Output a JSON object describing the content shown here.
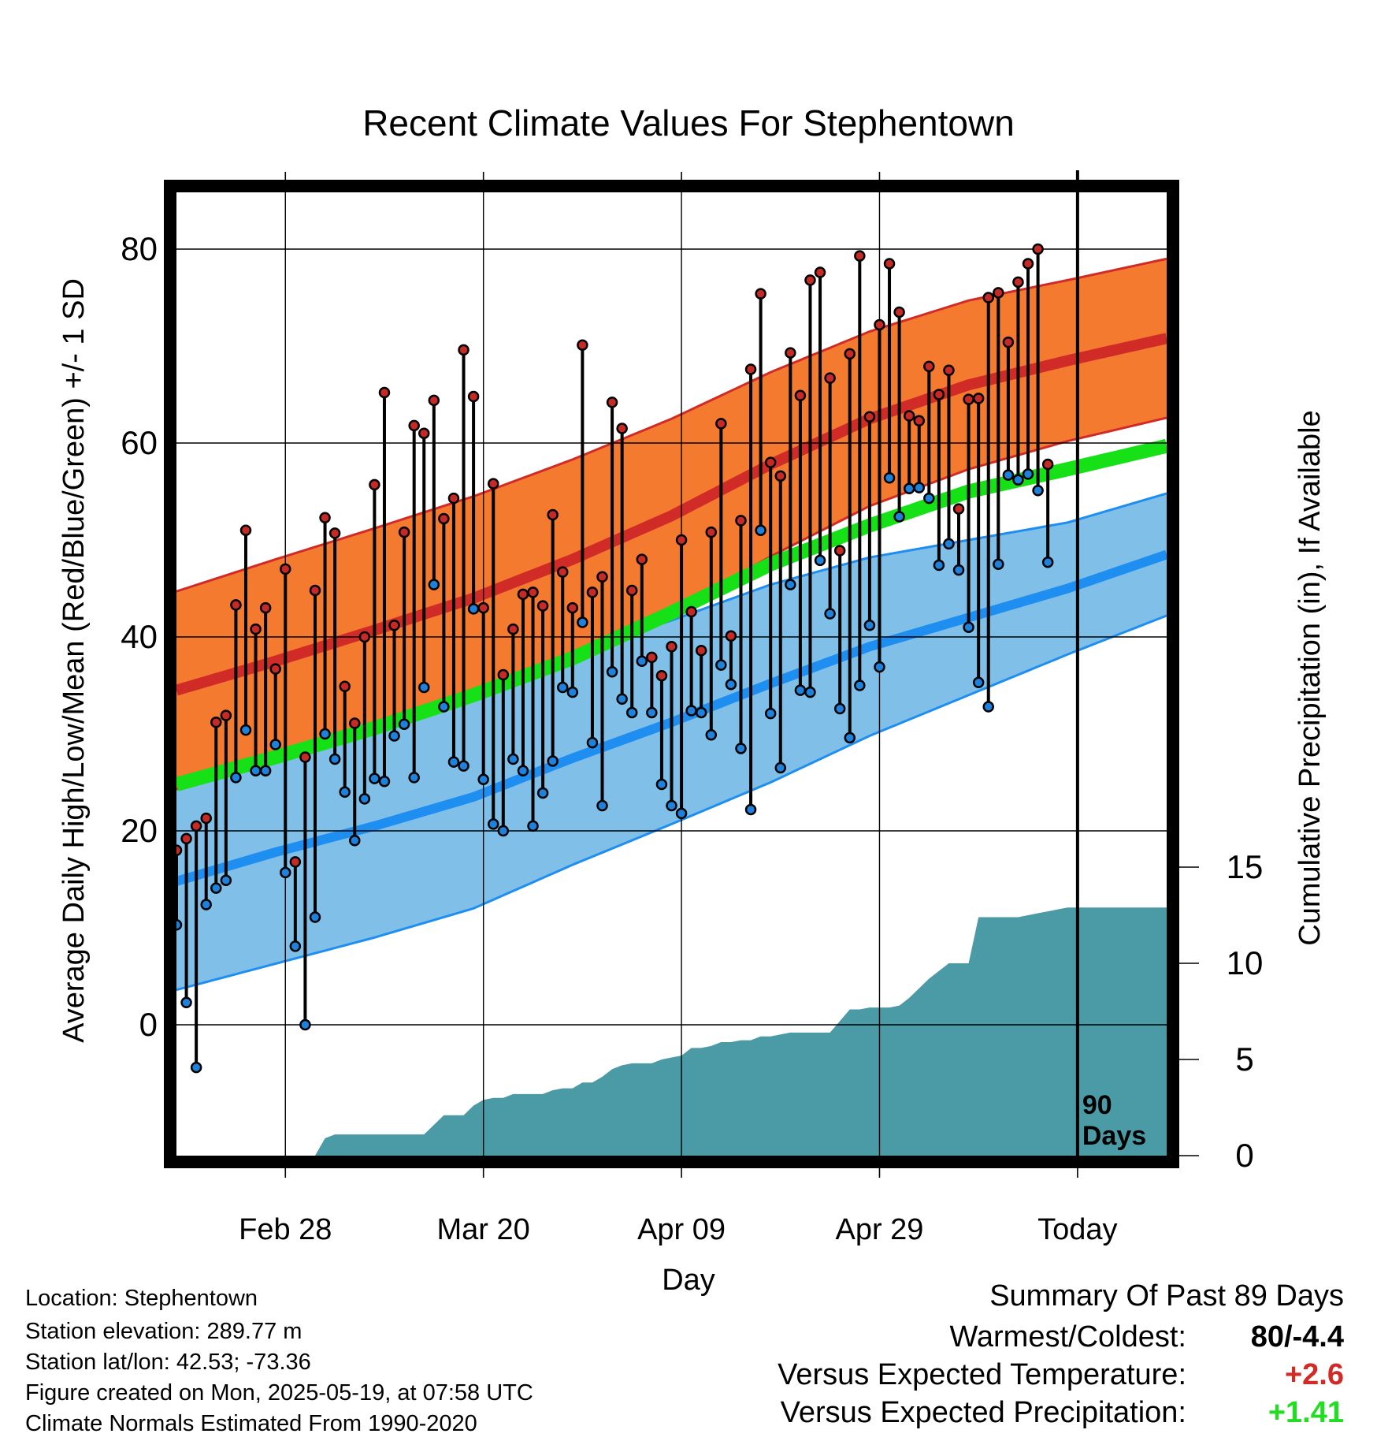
{
  "chart_data": {
    "type": "line",
    "title": "Recent Climate Values For Stephentown",
    "xlabel": "Day",
    "ylabel": "Average Daily High/Low/Mean (Red/Blue/Green) +/- 1 SD",
    "y2label": "Cumulative Precipitation (in), If Available",
    "ylim": [
      -17,
      86
    ],
    "y2lim": [
      0,
      40
    ],
    "yticks": [
      0,
      20,
      40,
      60,
      80
    ],
    "y2ticks": [
      0,
      5,
      10,
      15
    ],
    "xticks": [
      {
        "day": 12,
        "label": "Feb 28"
      },
      {
        "day": 32,
        "label": "Mar 20"
      },
      {
        "day": 52,
        "label": "Apr 09"
      },
      {
        "day": 72,
        "label": "Apr 29"
      },
      {
        "day": 92,
        "label": "Today"
      }
    ],
    "xlim": [
      1,
      101
    ],
    "today_day": 92,
    "window_label": [
      "90",
      "Days"
    ],
    "grid": true,
    "normals": {
      "days": [
        1,
        11,
        21,
        31,
        41,
        51,
        61,
        71,
        81,
        91,
        101
      ],
      "high_mean": [
        34.5,
        37.5,
        40.7,
        44.0,
        48.0,
        52.5,
        57.8,
        62.5,
        66.0,
        68.5,
        70.8
      ],
      "high_sd": [
        10.2,
        10.5,
        10.5,
        10.5,
        10.3,
        10.0,
        9.5,
        9.0,
        8.7,
        8.3,
        8.2
      ],
      "low_mean": [
        14.8,
        17.8,
        20.5,
        23.5,
        27.5,
        31.2,
        35.2,
        39.0,
        42.0,
        45.0,
        48.5
      ],
      "low_sd": [
        11.2,
        11.5,
        11.5,
        11.5,
        11.0,
        10.5,
        10.2,
        9.2,
        8.0,
        6.8,
        6.3
      ],
      "avg_mean": [
        24.8,
        27.6,
        30.6,
        34.0,
        37.8,
        42.5,
        47.5,
        51.5,
        55.0,
        57.3,
        59.7
      ],
      "colors": {
        "high_band": "#f47a30",
        "high_line": "#d12b27",
        "low_band": "#80c0e8",
        "low_line": "#1e8ef0",
        "avg_line": "#16e016"
      }
    },
    "series": [
      {
        "name": "High",
        "color": "#c62a26",
        "values": [
          18.0,
          19.2,
          20.5,
          21.3,
          31.2,
          31.9,
          43.3,
          51.0,
          40.8,
          43.0,
          36.7,
          47.0,
          16.8,
          27.6,
          44.8,
          52.3,
          50.7,
          34.9,
          31.1,
          40.0,
          55.7,
          65.2,
          41.2,
          50.8,
          61.8,
          61.0,
          64.4,
          52.2,
          54.3,
          69.6,
          64.8,
          43.0,
          55.8,
          36.1,
          40.8,
          44.4,
          44.6,
          43.2,
          52.6,
          46.7,
          43.0,
          70.1,
          44.6,
          46.2,
          64.2,
          61.5,
          44.8,
          48.0,
          37.9,
          36.0,
          39.0,
          50.0,
          42.6,
          38.6,
          50.8,
          62.0,
          40.1,
          52.0,
          67.6,
          75.4,
          58.0,
          56.6,
          69.3,
          64.9,
          76.8,
          77.6,
          66.7,
          48.9,
          69.2,
          79.3,
          62.7,
          72.2,
          78.5,
          73.5,
          62.8,
          62.3,
          67.9,
          65.0,
          67.5,
          53.2,
          64.5,
          64.6,
          75.0,
          75.5,
          70.4,
          76.6,
          78.5,
          80.0,
          57.8
        ]
      },
      {
        "name": "Low",
        "color": "#1e82dc",
        "values": [
          10.3,
          2.3,
          -4.4,
          12.4,
          14.1,
          14.9,
          25.5,
          30.4,
          26.2,
          26.2,
          28.9,
          15.7,
          8.1,
          0.0,
          11.1,
          30.0,
          27.4,
          24.0,
          19.0,
          23.3,
          25.4,
          25.1,
          29.8,
          31.0,
          25.5,
          34.8,
          45.4,
          32.8,
          27.1,
          26.7,
          42.9,
          25.3,
          20.7,
          20.0,
          27.4,
          26.2,
          20.5,
          23.9,
          27.2,
          34.8,
          34.3,
          41.5,
          29.1,
          22.6,
          36.4,
          33.6,
          32.2,
          37.5,
          32.2,
          24.8,
          22.6,
          21.8,
          32.4,
          32.2,
          29.9,
          37.1,
          35.1,
          28.5,
          22.2,
          51.0,
          32.1,
          26.5,
          45.4,
          34.5,
          34.3,
          47.9,
          42.4,
          32.6,
          29.6,
          35.0,
          41.2,
          36.9,
          56.4,
          52.4,
          55.3,
          55.4,
          54.3,
          47.4,
          49.6,
          46.9,
          41.0,
          35.3,
          32.8,
          47.5,
          56.7,
          56.2,
          56.8,
          55.1,
          47.7
        ]
      },
      {
        "name": "Cumulative Precipitation",
        "color": "#4a9ba5",
        "day": [
          15,
          16,
          17,
          18,
          19,
          26,
          27,
          28,
          29,
          30,
          31,
          32,
          33,
          34,
          35,
          36,
          38,
          39,
          40,
          41,
          42,
          43,
          44,
          45,
          46,
          47,
          48,
          49,
          50,
          51,
          52,
          53,
          54,
          55,
          56,
          57,
          58,
          59,
          60,
          61,
          62,
          63,
          64,
          65,
          66,
          67,
          68,
          69,
          70,
          71,
          72,
          73,
          74,
          75,
          76,
          77,
          78,
          79,
          80,
          81,
          82,
          83,
          84,
          85,
          86,
          87,
          88,
          89,
          90,
          91,
          92,
          101
        ],
        "values": [
          0.0,
          0.9,
          1.1,
          1.1,
          1.1,
          1.1,
          1.6,
          2.1,
          2.1,
          2.1,
          2.6,
          2.9,
          3.0,
          3.0,
          3.2,
          3.2,
          3.2,
          3.4,
          3.5,
          3.5,
          3.8,
          3.8,
          4.1,
          4.5,
          4.7,
          4.8,
          4.8,
          4.8,
          5.0,
          5.1,
          5.2,
          5.6,
          5.6,
          5.7,
          5.9,
          5.9,
          6.0,
          6.0,
          6.2,
          6.2,
          6.3,
          6.4,
          6.4,
          6.4,
          6.4,
          6.4,
          7.0,
          7.6,
          7.6,
          7.7,
          7.7,
          7.7,
          7.8,
          8.2,
          8.7,
          9.2,
          9.6,
          10.0,
          10.0,
          10.0,
          12.4,
          12.4,
          12.4,
          12.4,
          12.4,
          12.5,
          12.6,
          12.7,
          12.8,
          12.9,
          12.9,
          12.9
        ]
      }
    ]
  },
  "footer": {
    "location": "Location: Stephentown",
    "elevation": "Station elevation: 289.77 m",
    "latlon": "Station lat/lon: 42.53; -73.36",
    "created": "Figure created on Mon, 2025-05-19, at 07:58 UTC",
    "normals": "Climate Normals Estimated From 1990-2020"
  },
  "summary": {
    "title": "Summary Of Past 89 Days",
    "warmest_label": "Warmest/Coldest:",
    "warmest_value": "80/-4.4",
    "temp_label": "Versus Expected Temperature:",
    "temp_value": "+2.6",
    "temp_color": "#d12b27",
    "precip_label": "Versus Expected Precipitation:",
    "precip_value": "+1.41",
    "precip_color": "#22dd22"
  }
}
